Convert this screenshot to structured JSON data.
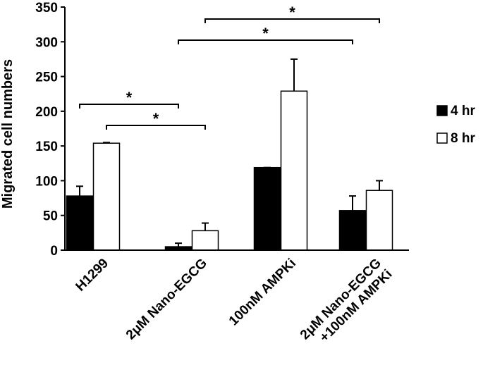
{
  "chart_data": {
    "type": "bar",
    "title": "",
    "xlabel": "",
    "ylabel": "Migrated cell numbers",
    "ylim": [
      0,
      350
    ],
    "yticks": [
      0,
      50,
      100,
      150,
      200,
      250,
      300,
      350
    ],
    "categories": [
      [
        "H1299"
      ],
      [
        "2μM Nano-EGCG"
      ],
      [
        "100nM AMPKi"
      ],
      [
        "2μM Nano-EGCG",
        "+100nM AMPKi"
      ]
    ],
    "series": [
      {
        "name": "4 hr",
        "color": "#000000",
        "values": [
          78,
          5,
          119,
          57
        ],
        "errors": [
          14,
          5,
          0,
          21
        ]
      },
      {
        "name": "8 hr",
        "color": "#ffffff",
        "values": [
          154,
          28,
          229,
          86
        ],
        "errors": [
          1,
          11,
          46,
          14
        ]
      }
    ],
    "legend": {
      "position": "right"
    },
    "grid": false,
    "significance": [
      {
        "from": [
          0,
          "4 hr"
        ],
        "to": [
          1,
          "4 hr"
        ],
        "label": "*"
      },
      {
        "from": [
          0,
          "8 hr"
        ],
        "to": [
          1,
          "8 hr"
        ],
        "label": "*"
      },
      {
        "from": [
          1,
          "4 hr"
        ],
        "to": [
          3,
          "4 hr"
        ],
        "label": "*"
      },
      {
        "from": [
          1,
          "8 hr"
        ],
        "to": [
          3,
          "8 hr"
        ],
        "label": "*"
      }
    ]
  }
}
